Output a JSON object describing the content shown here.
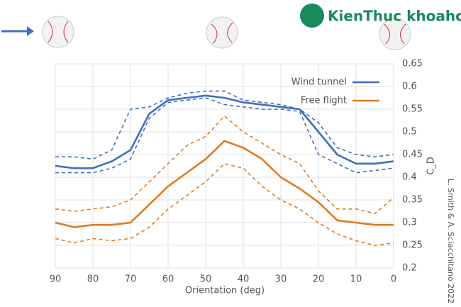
{
  "chart_data": {
    "type": "line",
    "x": [
      90,
      85,
      80,
      75,
      70,
      65,
      60,
      55,
      50,
      45,
      40,
      35,
      30,
      25,
      20,
      15,
      10,
      5,
      0
    ],
    "xlabel": "Orientation (deg)",
    "ylabel": "C_D",
    "series": [
      {
        "name": "Wind tunnel",
        "color": "#3f6fc0",
        "values": [
          0.425,
          0.42,
          0.42,
          0.435,
          0.46,
          0.54,
          0.57,
          0.575,
          0.58,
          0.575,
          0.565,
          0.56,
          0.555,
          0.55,
          0.5,
          0.45,
          0.43,
          0.43,
          0.435
        ],
        "upper": [
          0.445,
          0.445,
          0.44,
          0.46,
          0.55,
          0.555,
          0.575,
          0.585,
          0.59,
          0.59,
          0.57,
          0.565,
          0.56,
          0.55,
          0.52,
          0.465,
          0.45,
          0.445,
          0.45
        ],
        "lower": [
          0.41,
          0.41,
          0.41,
          0.42,
          0.44,
          0.53,
          0.565,
          0.57,
          0.575,
          0.56,
          0.555,
          0.55,
          0.55,
          0.545,
          0.45,
          0.43,
          0.41,
          0.415,
          0.42
        ]
      },
      {
        "name": "Free flight",
        "color": "#e07b22",
        "values": [
          0.3,
          0.29,
          0.295,
          0.295,
          0.3,
          0.34,
          0.38,
          0.41,
          0.44,
          0.48,
          0.465,
          0.44,
          0.4,
          0.375,
          0.345,
          0.305,
          0.3,
          0.295,
          0.295
        ],
        "upper": [
          0.33,
          0.325,
          0.33,
          0.335,
          0.35,
          0.39,
          0.43,
          0.47,
          0.49,
          0.535,
          0.5,
          0.475,
          0.45,
          0.43,
          0.37,
          0.33,
          0.33,
          0.32,
          0.355
        ],
        "lower": [
          0.265,
          0.255,
          0.265,
          0.26,
          0.265,
          0.29,
          0.33,
          0.36,
          0.39,
          0.43,
          0.42,
          0.38,
          0.35,
          0.33,
          0.3,
          0.275,
          0.26,
          0.25,
          0.255
        ]
      }
    ],
    "xlim": [
      90,
      0
    ],
    "xticks": [
      90,
      80,
      70,
      60,
      50,
      40,
      30,
      20,
      10,
      0
    ],
    "ylim": [
      0.2,
      0.65
    ],
    "yticks": [
      0.2,
      0.25,
      0.3,
      0.35,
      0.4,
      0.45,
      0.5,
      0.55,
      0.6,
      0.65
    ],
    "grid": true,
    "legend": "top-right",
    "credit": "L. Smith & A. Sciacchitano 2022",
    "watermark": "KienThuc khoahoc .org"
  }
}
